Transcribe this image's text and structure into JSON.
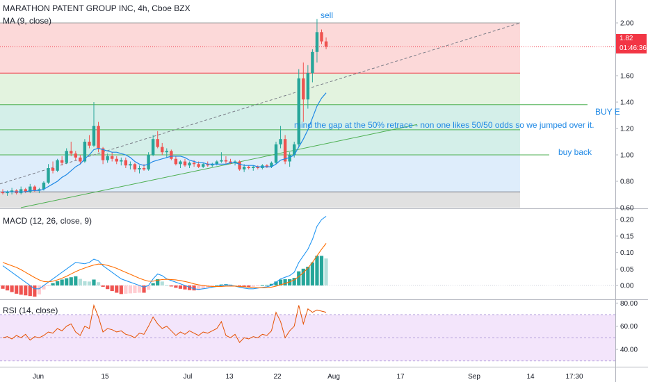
{
  "header": {
    "title": "MARATHON PATENT GROUP INC, 4h, Cboe BZX",
    "ma_label": "MA (9, close)"
  },
  "price_tags": {
    "last": "1.82",
    "countdown": "01:46:36",
    "color": "#f23645"
  },
  "annotations": {
    "sell": "sell",
    "buy_cut": "BUY E",
    "gap_note": "mind the gap at the 50% retrace - non one likes 50/50 odds so we jumped over it.",
    "buy_back": "buy back"
  },
  "colors": {
    "up": "#26a69a",
    "down": "#ef5350",
    "ma": "#1e88e5",
    "macd": "#2196f3",
    "signal": "#ff6d00",
    "rsi": "#e65100",
    "fib_red": "#fcd9d9",
    "fib_green1": "#e3f3df",
    "fib_green2": "#d4efe9",
    "fib_blue": "#deedfb",
    "fib_grey": "#e1e1e1"
  },
  "chart_data": [
    {
      "type": "candlestick",
      "title": "MARATHON PATENT GROUP INC, 4h, Cboe BZX",
      "ylim": [
        0.6,
        2.1
      ],
      "y_ticks": [
        "2.00",
        "1.80",
        "1.60",
        "1.40",
        "1.20",
        "1.00",
        "0.80",
        "0.60"
      ],
      "x_ticks": [
        "Jun",
        "15",
        "Jul",
        "13",
        "22",
        "Aug",
        "17",
        "Sep",
        "14",
        "17:30"
      ],
      "ma_label": "MA (9, close)",
      "fib_levels": [
        2.0,
        1.62,
        1.38,
        1.19,
        1.0,
        0.72
      ],
      "candles": [
        [
          0.72,
          0.74,
          0.7,
          0.71
        ],
        [
          0.71,
          0.73,
          0.69,
          0.72
        ],
        [
          0.72,
          0.75,
          0.7,
          0.73
        ],
        [
          0.73,
          0.74,
          0.7,
          0.71
        ],
        [
          0.71,
          0.76,
          0.7,
          0.74
        ],
        [
          0.74,
          0.75,
          0.71,
          0.72
        ],
        [
          0.72,
          0.78,
          0.71,
          0.76
        ],
        [
          0.76,
          0.77,
          0.72,
          0.73
        ],
        [
          0.73,
          0.75,
          0.71,
          0.74
        ],
        [
          0.74,
          0.8,
          0.73,
          0.79
        ],
        [
          0.79,
          0.93,
          0.78,
          0.9
        ],
        [
          0.9,
          0.95,
          0.86,
          0.88
        ],
        [
          0.88,
          0.97,
          0.87,
          0.96
        ],
        [
          0.96,
          0.99,
          0.92,
          0.94
        ],
        [
          0.94,
          1.05,
          0.93,
          1.03
        ],
        [
          1.03,
          1.1,
          0.99,
          1.01
        ],
        [
          1.01,
          1.03,
          0.96,
          0.98
        ],
        [
          0.98,
          1.0,
          0.93,
          0.95
        ],
        [
          0.95,
          1.12,
          0.94,
          1.1
        ],
        [
          1.1,
          1.15,
          1.05,
          1.07
        ],
        [
          1.07,
          1.4,
          1.06,
          1.22
        ],
        [
          1.22,
          1.25,
          1.02,
          1.05
        ],
        [
          1.05,
          1.06,
          0.93,
          0.96
        ],
        [
          0.96,
          1.01,
          0.94,
          0.99
        ],
        [
          0.99,
          1.02,
          0.95,
          0.97
        ],
        [
          0.97,
          0.99,
          0.93,
          0.95
        ],
        [
          0.95,
          0.98,
          0.92,
          0.96
        ],
        [
          0.96,
          0.98,
          0.9,
          0.92
        ],
        [
          0.92,
          0.95,
          0.89,
          0.93
        ],
        [
          0.93,
          0.94,
          0.87,
          0.89
        ],
        [
          0.89,
          0.92,
          0.86,
          0.9
        ],
        [
          0.9,
          0.93,
          0.88,
          0.89
        ],
        [
          0.89,
          1.02,
          0.88,
          1.0
        ],
        [
          1.0,
          1.15,
          0.99,
          1.12
        ],
        [
          1.12,
          1.18,
          1.05,
          1.06
        ],
        [
          1.06,
          1.09,
          1.0,
          1.02
        ],
        [
          1.02,
          1.05,
          0.98,
          1.03
        ],
        [
          1.03,
          1.04,
          0.96,
          0.97
        ],
        [
          0.97,
          0.99,
          0.92,
          0.93
        ],
        [
          0.93,
          0.96,
          0.9,
          0.95
        ],
        [
          0.95,
          0.97,
          0.91,
          0.92
        ],
        [
          0.92,
          0.95,
          0.9,
          0.94
        ],
        [
          0.94,
          0.96,
          0.91,
          0.93
        ],
        [
          0.93,
          0.95,
          0.9,
          0.91
        ],
        [
          0.91,
          0.94,
          0.9,
          0.93
        ],
        [
          0.93,
          0.95,
          0.91,
          0.92
        ],
        [
          0.92,
          0.94,
          0.91,
          0.93
        ],
        [
          0.93,
          0.96,
          0.92,
          0.95
        ],
        [
          0.95,
          1.02,
          0.94,
          0.96
        ],
        [
          0.96,
          0.99,
          0.93,
          0.95
        ],
        [
          0.95,
          0.97,
          0.93,
          0.94
        ],
        [
          0.94,
          0.96,
          0.92,
          0.95
        ],
        [
          0.95,
          0.96,
          0.88,
          0.89
        ],
        [
          0.89,
          0.93,
          0.87,
          0.91
        ],
        [
          0.91,
          0.92,
          0.89,
          0.9
        ],
        [
          0.9,
          0.92,
          0.88,
          0.91
        ],
        [
          0.91,
          0.92,
          0.89,
          0.9
        ],
        [
          0.9,
          0.93,
          0.89,
          0.92
        ],
        [
          0.92,
          0.93,
          0.9,
          0.91
        ],
        [
          0.91,
          0.95,
          0.9,
          0.94
        ],
        [
          0.94,
          1.1,
          0.93,
          1.08
        ],
        [
          1.08,
          1.22,
          1.05,
          1.12
        ],
        [
          1.12,
          1.15,
          0.93,
          0.95
        ],
        [
          0.95,
          1.02,
          0.91,
          1.0
        ],
        [
          1.0,
          1.1,
          0.98,
          1.08
        ],
        [
          1.08,
          1.65,
          1.06,
          1.58
        ],
        [
          1.58,
          1.7,
          1.25,
          1.42
        ],
        [
          1.42,
          1.68,
          1.35,
          1.62
        ],
        [
          1.62,
          1.8,
          1.55,
          1.78
        ],
        [
          1.78,
          2.03,
          1.7,
          1.93
        ],
        [
          1.93,
          1.95,
          1.84,
          1.86
        ],
        [
          1.86,
          1.89,
          1.8,
          1.82
        ]
      ],
      "ma": [
        0.72,
        0.72,
        0.72,
        0.72,
        0.72,
        0.72,
        0.73,
        0.73,
        0.73,
        0.74,
        0.76,
        0.78,
        0.8,
        0.83,
        0.85,
        0.88,
        0.91,
        0.93,
        0.97,
        1.0,
        1.04,
        1.05,
        1.04,
        1.03,
        1.02,
        1.02,
        1.01,
        1.0,
        0.98,
        0.95,
        0.93,
        0.92,
        0.93,
        0.95,
        0.96,
        0.97,
        0.98,
        0.99,
        0.99,
        0.99,
        0.98,
        0.96,
        0.95,
        0.94,
        0.94,
        0.93,
        0.93,
        0.93,
        0.93,
        0.93,
        0.94,
        0.94,
        0.93,
        0.92,
        0.92,
        0.92,
        0.91,
        0.91,
        0.91,
        0.91,
        0.93,
        0.96,
        0.97,
        0.98,
        1.0,
        1.06,
        1.12,
        1.19,
        1.28,
        1.37,
        1.43,
        1.47
      ]
    },
    {
      "type": "bar",
      "title": "MACD (12, 26, close, 9)",
      "ylim": [
        -0.04,
        0.23
      ],
      "y_ticks": [
        "0.20",
        "0.15",
        "0.10",
        "0.05",
        "0.00"
      ],
      "macd": [
        0.06,
        0.05,
        0.04,
        0.03,
        0.02,
        0.01,
        0.0,
        -0.01,
        -0.01,
        0.0,
        0.01,
        0.02,
        0.03,
        0.04,
        0.05,
        0.06,
        0.07,
        0.068,
        0.066,
        0.07,
        0.08,
        0.075,
        0.06,
        0.05,
        0.04,
        0.03,
        0.02,
        0.015,
        0.01,
        0.005,
        0.0,
        -0.005,
        0.0,
        0.02,
        0.035,
        0.03,
        0.02,
        0.015,
        0.01,
        0.005,
        0.0,
        -0.005,
        -0.01,
        -0.012,
        -0.01,
        -0.008,
        -0.005,
        -0.003,
        0.0,
        0.002,
        0.001,
        -0.002,
        -0.005,
        -0.008,
        -0.01,
        -0.01,
        -0.008,
        -0.006,
        -0.004,
        0.0,
        0.01,
        0.02,
        0.025,
        0.03,
        0.04,
        0.07,
        0.09,
        0.11,
        0.14,
        0.18,
        0.2,
        0.21
      ],
      "signal": [
        0.07,
        0.065,
        0.06,
        0.055,
        0.048,
        0.04,
        0.032,
        0.024,
        0.017,
        0.012,
        0.011,
        0.013,
        0.017,
        0.022,
        0.028,
        0.035,
        0.042,
        0.048,
        0.053,
        0.058,
        0.062,
        0.065,
        0.064,
        0.061,
        0.057,
        0.052,
        0.046,
        0.04,
        0.034,
        0.028,
        0.022,
        0.017,
        0.013,
        0.013,
        0.016,
        0.018,
        0.019,
        0.018,
        0.017,
        0.015,
        0.012,
        0.009,
        0.005,
        0.002,
        0.0,
        -0.002,
        -0.003,
        -0.003,
        -0.003,
        -0.002,
        -0.002,
        -0.002,
        -0.003,
        -0.004,
        -0.005,
        -0.006,
        -0.007,
        -0.007,
        -0.006,
        -0.005,
        -0.002,
        0.002,
        0.006,
        0.011,
        0.017,
        0.027,
        0.039,
        0.053,
        0.07,
        0.09,
        0.11,
        0.128
      ],
      "histogram": [
        -0.01,
        -0.015,
        -0.02,
        -0.025,
        -0.028,
        -0.03,
        -0.032,
        -0.034,
        -0.027,
        -0.012,
        -0.001,
        0.007,
        0.013,
        0.018,
        0.022,
        0.025,
        0.028,
        0.02,
        0.013,
        0.012,
        0.018,
        0.01,
        -0.004,
        -0.011,
        -0.017,
        -0.022,
        -0.026,
        -0.025,
        -0.024,
        -0.023,
        -0.022,
        -0.022,
        -0.013,
        0.007,
        0.019,
        0.012,
        0.001,
        -0.003,
        -0.007,
        -0.01,
        -0.012,
        -0.014,
        -0.015,
        -0.014,
        -0.01,
        -0.006,
        -0.002,
        0.0,
        0.003,
        0.004,
        0.003,
        0.0,
        -0.002,
        -0.004,
        -0.005,
        -0.004,
        -0.001,
        0.001,
        0.002,
        0.005,
        0.012,
        0.018,
        0.019,
        0.019,
        0.023,
        0.043,
        0.051,
        0.057,
        0.07,
        0.09,
        0.09,
        0.082
      ]
    },
    {
      "type": "line",
      "title": "RSI (14, close)",
      "ylim": [
        25,
        82
      ],
      "y_ticks": [
        "80.00",
        "60.00",
        "40.00"
      ],
      "band": [
        30,
        70
      ],
      "values": [
        50,
        51,
        49,
        52,
        50,
        53,
        48,
        51,
        50,
        52,
        55,
        54,
        58,
        56,
        60,
        62,
        55,
        52,
        60,
        58,
        78,
        68,
        55,
        58,
        57,
        55,
        56,
        53,
        52,
        50,
        54,
        53,
        60,
        68,
        62,
        58,
        60,
        56,
        52,
        55,
        53,
        56,
        54,
        52,
        55,
        54,
        56,
        58,
        64,
        52,
        50,
        53,
        46,
        50,
        49,
        51,
        50,
        53,
        52,
        56,
        72,
        64,
        50,
        56,
        60,
        78,
        62,
        75,
        72,
        74,
        73,
        72
      ]
    }
  ]
}
